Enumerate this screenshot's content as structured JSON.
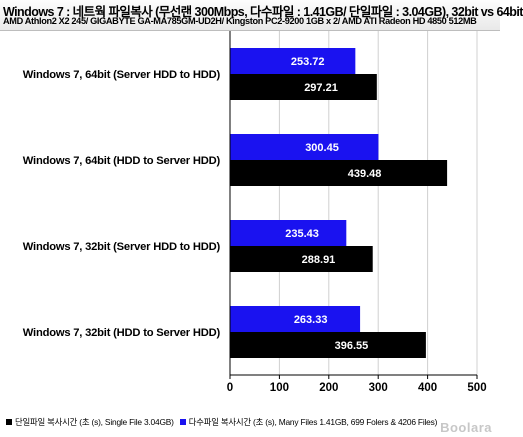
{
  "header": {
    "title": "Windows 7 : 네트웍 파일복사 (무선랜 300Mbps, 다수파일 : 1.41GB/ 단일파일 : 3.04GB), 32bit vs 64bit",
    "subtitle": "AMD Athlon2 X2 245/ GIGABYTE GA-MA785GM-UD2H/ Kingston PC2-9200 1GB x 2/ AMD ATI Radeon HD 4850 512MB"
  },
  "watermark": "Boolara",
  "colors": {
    "single": "#000000",
    "many": "#1a12f0",
    "grid": "#d0d0d0"
  },
  "chart_data": {
    "type": "bar",
    "orientation": "horizontal",
    "categories": [
      "Windows 7, 64bit (Server HDD to HDD)",
      "Windows 7, 64bit (HDD to Server HDD)",
      "Windows 7, 32bit (Server HDD to HDD)",
      "Windows 7, 32bit (HDD to Server HDD)"
    ],
    "series": [
      {
        "name": "다수파일 복사시간 (초 (s), Many Files 1.41GB, 699 Folers & 4206 Files)",
        "values": [
          253.72,
          300.45,
          235.43,
          263.33
        ]
      },
      {
        "name": "단일파일 복사시간 (초 (s), Single File 3.04GB)",
        "values": [
          297.21,
          439.48,
          288.91,
          396.55
        ]
      }
    ],
    "xlim": [
      0,
      500
    ],
    "xticks": [
      0,
      100,
      200,
      300,
      400,
      500
    ],
    "grid": false,
    "legend_position": "bottom",
    "legend_order": [
      1,
      0
    ]
  }
}
